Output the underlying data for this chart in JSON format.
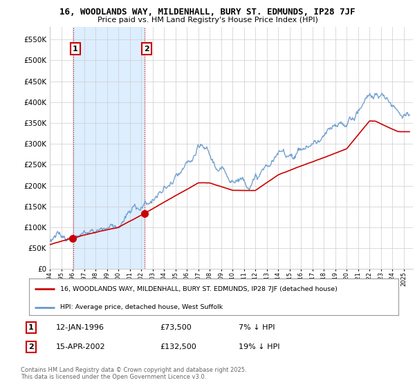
{
  "title1": "16, WOODLANDS WAY, MILDENHALL, BURY ST. EDMUNDS, IP28 7JF",
  "title2": "Price paid vs. HM Land Registry's House Price Index (HPI)",
  "legend_label_red": "16, WOODLANDS WAY, MILDENHALL, BURY ST. EDMUNDS, IP28 7JF (detached house)",
  "legend_label_blue": "HPI: Average price, detached house, West Suffolk",
  "sale1_label": "1",
  "sale1_date": "12-JAN-1996",
  "sale1_price": "£73,500",
  "sale1_hpi": "7% ↓ HPI",
  "sale2_label": "2",
  "sale2_date": "15-APR-2002",
  "sale2_price": "£132,500",
  "sale2_hpi": "19% ↓ HPI",
  "footnote": "Contains HM Land Registry data © Crown copyright and database right 2025.\nThis data is licensed under the Open Government Licence v3.0.",
  "ylim": [
    0,
    580000
  ],
  "yticks": [
    0,
    50000,
    100000,
    150000,
    200000,
    250000,
    300000,
    350000,
    400000,
    450000,
    500000,
    550000
  ],
  "background_color": "#ffffff",
  "grid_color": "#cccccc",
  "shade_color": "#ddeeff",
  "sale1_year": 1996.04,
  "sale1_value": 73500,
  "sale2_year": 2002.29,
  "sale2_value": 132500,
  "hpi_color": "#6699cc",
  "prop_color": "#cc0000",
  "vline_color": "#cc0000"
}
